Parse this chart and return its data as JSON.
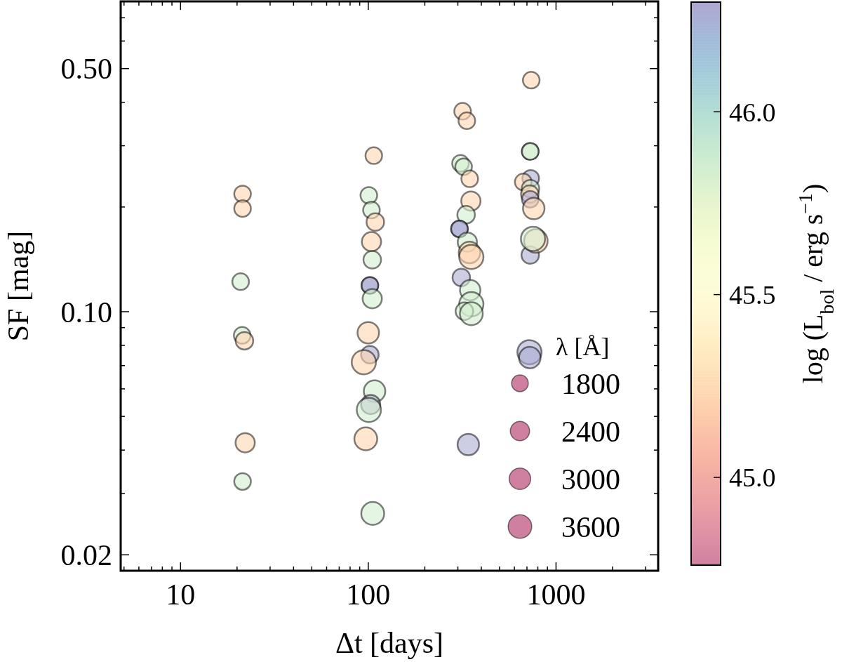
{
  "chart_data": {
    "type": "bubble",
    "xlabel": "Δt [days]",
    "ylabel": "SF [mag]",
    "clabel": "log (L$_{bol}$ / erg s$^{−1}$)",
    "legend_title": "λ [Å]",
    "log": "xy",
    "xlim": [
      4.8,
      3500
    ],
    "xticks": [
      10,
      100,
      1000
    ],
    "ylim": [
      0.018,
      0.78
    ],
    "yticks": [
      {
        "value": 0.02,
        "label": "0.02"
      },
      {
        "value": 0.1,
        "label": "0.10"
      },
      {
        "value": 0.5,
        "label": "0.50"
      }
    ],
    "clim": [
      44.76,
      46.3
    ],
    "cticks": [
      {
        "value": 45,
        "label": "45.0"
      },
      {
        "value": 45.5,
        "label": "45.5"
      },
      {
        "value": 46,
        "label": "46.0"
      }
    ],
    "size_legend": [
      1800,
      2400,
      3000,
      3600
    ],
    "x": [
      21.4,
      21.4,
      20.9,
      21.3,
      21.9,
      22.1,
      21.4,
      107,
      100.7,
      104,
      109,
      104,
      105,
      102,
      102,
      105,
      100,
      102,
      94.7,
      108,
      103,
      100.7,
      97,
      105.6,
      318,
      335,
      310,
      322,
      347,
      352,
      332,
      306,
      306,
      337,
      346,
      354,
      313,
      349,
      354,
      325,
      354,
      341,
      738,
      729,
      729,
      733,
      669,
      731,
      725,
      729,
      761,
      729,
      781,
      754,
      722,
      725
    ],
    "values": [
      0.218,
      0.198,
      0.122,
      0.0855,
      0.0825,
      0.042,
      0.0325,
      0.281,
      0.216,
      0.196,
      0.181,
      0.159,
      0.141,
      0.119,
      0.119,
      0.109,
      0.087,
      0.0752,
      0.0716,
      0.0591,
      0.0541,
      0.0522,
      0.0431,
      0.0263,
      0.377,
      0.354,
      0.267,
      0.261,
      0.241,
      0.208,
      0.19,
      0.173,
      0.173,
      0.1585,
      0.148,
      0.1437,
      0.1254,
      0.1153,
      0.1051,
      0.1003,
      0.0987,
      0.0415,
      0.463,
      0.289,
      0.289,
      0.2417,
      0.236,
      0.2257,
      0.2178,
      0.2105,
      0.198,
      0.1456,
      0.1597,
      0.162,
      0.0765,
      0.0738
    ],
    "sizes": [
      1800,
      1800,
      1800,
      1800,
      2000,
      2400,
      1800,
      1800,
      1800,
      1800,
      2000,
      2400,
      2000,
      1800,
      1800,
      2400,
      3000,
      2000,
      3800,
      3000,
      2400,
      3800,
      3400,
      3400,
      1800,
      1800,
      1800,
      1800,
      1800,
      2400,
      2000,
      1800,
      1800,
      2400,
      3000,
      3800,
      2000,
      2700,
      3800,
      2000,
      3400,
      3000,
      1800,
      1800,
      1800,
      1800,
      1800,
      2000,
      2000,
      1800,
      3000,
      2000,
      3600,
      3800,
      3800,
      3000
    ],
    "cvalues": [
      45.22,
      45.22,
      45.84,
      45.84,
      45.22,
      45.22,
      45.84,
      45.22,
      45.84,
      45.84,
      45.22,
      45.22,
      45.84,
      46.28,
      46.28,
      45.84,
      45.22,
      46.28,
      45.22,
      45.84,
      46.28,
      45.84,
      45.22,
      45.84,
      45.22,
      45.22,
      45.84,
      45.84,
      45.22,
      45.22,
      45.84,
      46.28,
      46.28,
      45.84,
      45.22,
      45.22,
      46.28,
      45.84,
      45.84,
      45.84,
      45.84,
      46.28,
      45.22,
      45.84,
      45.84,
      46.28,
      45.22,
      45.84,
      45.22,
      46.28,
      45.22,
      46.28,
      45.22,
      45.84,
      46.28,
      46.28
    ]
  }
}
